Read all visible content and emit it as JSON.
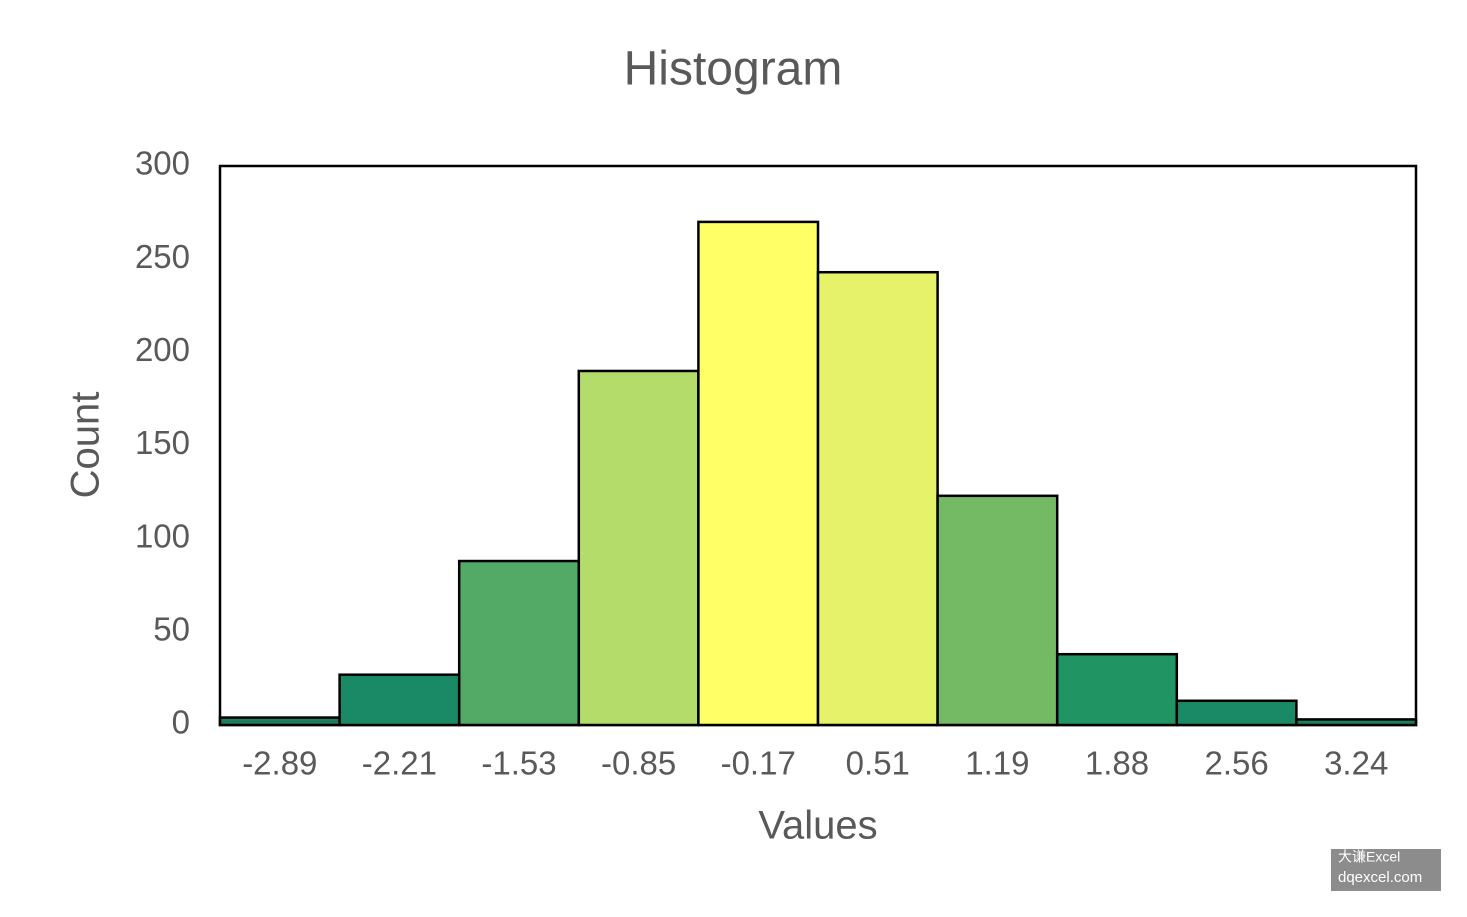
{
  "chart_data": {
    "type": "bar",
    "title": "Histogram",
    "x_label": "Values",
    "y_label": "Count",
    "categories": [
      "-2.89",
      "-2.21",
      "-1.53",
      "-0.85",
      "-0.17",
      "0.51",
      "1.19",
      "1.88",
      "2.56",
      "3.24"
    ],
    "values": [
      4,
      27,
      88,
      190,
      270,
      243,
      123,
      38,
      13,
      3
    ],
    "colors": [
      "#1f7d5f",
      "#1a8a66",
      "#52aa66",
      "#b3dc6a",
      "#ffff66",
      "#e5f26a",
      "#74b963",
      "#219464",
      "#1a8a66",
      "#1f7d5f"
    ],
    "ylim": [
      0,
      300
    ],
    "yticks": [
      0,
      50,
      100,
      150,
      200,
      250,
      300
    ],
    "grid": false
  },
  "watermark": [
    "大谦Excel",
    "dqexcel.com"
  ]
}
